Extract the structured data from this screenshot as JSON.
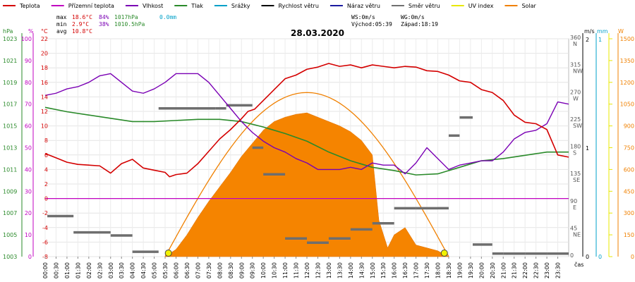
{
  "chart_data": {
    "type": "line",
    "title": "28.03.2020",
    "legend": [
      {
        "label": "Teplota",
        "color": "#d40000"
      },
      {
        "label": "Přízemní teplota",
        "color": "#c000c0"
      },
      {
        "label": "Vlhkost",
        "color": "#7a00b4"
      },
      {
        "label": "Tlak",
        "color": "#2a8a2a"
      },
      {
        "label": "Srážky",
        "color": "#00a0c8"
      },
      {
        "label": "Rychlost větru",
        "color": "#000000"
      },
      {
        "label": "Náraz větru",
        "color": "#1a1aa0"
      },
      {
        "label": "Směr větru",
        "color": "#707070"
      },
      {
        "label": "UV index",
        "color": "#e8e800"
      },
      {
        "label": "Solar",
        "color": "#f08000"
      }
    ],
    "stats": {
      "max_label": "max",
      "max_temp": "18.6°C",
      "max_hum": "84%",
      "max_press": "1017hPa",
      "rain": "0.0mm",
      "min_label": "min",
      "min_temp": "2.9°C",
      "min_hum": "38%",
      "min_press": "1010.5hPa",
      "avg_label": "avg",
      "avg_temp": "10.8°C",
      "ws": "WS:0m/s",
      "wg": "WG:0m/s",
      "sunrise": "Východ:05:39",
      "sunset": "Západ:18:19"
    },
    "axes": {
      "hpa_title": "hPa",
      "pct_title": "%",
      "c_title": "°C",
      "ms_title": "m/s",
      "mm_title": "mm",
      "w_title": "W",
      "x_title": "čas",
      "hpa_ticks": [
        "1003",
        "1005",
        "1007",
        "1009",
        "1011",
        "1013",
        "1015",
        "1017",
        "1019",
        "1021",
        "1023"
      ],
      "pct_ticks": [
        "0",
        "10",
        "20",
        "30",
        "40",
        "50",
        "60",
        "70",
        "80",
        "90",
        "100"
      ],
      "c_ticks": [
        "-8",
        "-6",
        "-4",
        "-2",
        "0",
        "2",
        "4",
        "6",
        "8",
        "10",
        "12",
        "14",
        "16",
        "18",
        "20",
        "22"
      ],
      "dir_ticks": [
        {
          "deg": 360,
          "label": "360",
          "dir": "N"
        },
        {
          "deg": 315,
          "label": "315",
          "dir": "NW"
        },
        {
          "deg": 270,
          "label": "270",
          "dir": "W"
        },
        {
          "deg": 225,
          "label": "225",
          "dir": "SW"
        },
        {
          "deg": 180,
          "label": "180",
          "dir": "S"
        },
        {
          "deg": 135,
          "label": "135",
          "dir": "SE"
        },
        {
          "deg": 90,
          "label": "90",
          "dir": "E"
        },
        {
          "deg": 45,
          "label": "45",
          "dir": "NE"
        },
        {
          "deg": 0,
          "label": "0",
          "dir": ""
        }
      ],
      "ms_ticks": [
        {
          "v": 2,
          "label": "2"
        },
        {
          "v": 1,
          "label": "1"
        },
        {
          "v": 0,
          "label": "0"
        }
      ],
      "mm_ticks": [
        {
          "v": 1,
          "label": "1"
        },
        {
          "v": 0,
          "label": "0"
        }
      ],
      "w_ticks": [
        "0",
        "150",
        "300",
        "450",
        "600",
        "750",
        "900",
        "1050",
        "1200",
        "1350",
        "1500"
      ],
      "x_ticks": [
        "00:00",
        "00:30",
        "01:00",
        "01:30",
        "02:00",
        "02:30",
        "03:00",
        "03:30",
        "04:00",
        "04:30",
        "05:00",
        "05:30",
        "06:00",
        "06:30",
        "07:00",
        "07:30",
        "08:00",
        "08:30",
        "09:00",
        "09:30",
        "10:00",
        "10:30",
        "11:00",
        "11:30",
        "12:00",
        "12:30",
        "13:00",
        "13:30",
        "14:00",
        "14:30",
        "15:00",
        "15:30",
        "16:00",
        "16:30",
        "17:00",
        "17:30",
        "18:00",
        "18:30",
        "19:00",
        "19:30",
        "20:00",
        "20:30",
        "21:00",
        "21:30",
        "22:00",
        "22:30",
        "23:00",
        "23:30"
      ],
      "temp_range": [
        -8,
        22
      ],
      "hum_range": [
        0,
        100
      ],
      "press_range": [
        1003,
        1023
      ],
      "dir_range": [
        0,
        360
      ],
      "solar_range": [
        0,
        1500
      ],
      "time_range_h": [
        0,
        24
      ]
    },
    "series": {
      "temperature": [
        [
          0,
          6.2
        ],
        [
          0.5,
          5.6
        ],
        [
          1,
          5.0
        ],
        [
          1.5,
          4.7
        ],
        [
          2,
          4.6
        ],
        [
          2.5,
          4.5
        ],
        [
          3,
          3.5
        ],
        [
          3.5,
          4.8
        ],
        [
          4,
          5.4
        ],
        [
          4.5,
          4.2
        ],
        [
          5,
          3.9
        ],
        [
          5.5,
          3.6
        ],
        [
          5.7,
          3.0
        ],
        [
          6,
          3.3
        ],
        [
          6.5,
          3.5
        ],
        [
          7,
          4.8
        ],
        [
          7.5,
          6.5
        ],
        [
          8,
          8.2
        ],
        [
          8.5,
          9.5
        ],
        [
          9,
          11.0
        ],
        [
          9.3,
          12.0
        ],
        [
          9.6,
          12.3
        ],
        [
          10,
          13.5
        ],
        [
          10.5,
          15.0
        ],
        [
          11,
          16.5
        ],
        [
          11.5,
          17.0
        ],
        [
          12,
          17.8
        ],
        [
          12.5,
          18.1
        ],
        [
          13,
          18.6
        ],
        [
          13.5,
          18.2
        ],
        [
          14,
          18.4
        ],
        [
          14.5,
          18.0
        ],
        [
          15,
          18.4
        ],
        [
          15.5,
          18.2
        ],
        [
          16,
          18.0
        ],
        [
          16.5,
          18.2
        ],
        [
          17,
          18.1
        ],
        [
          17.5,
          17.6
        ],
        [
          18,
          17.5
        ],
        [
          18.5,
          17.0
        ],
        [
          19,
          16.2
        ],
        [
          19.5,
          16.0
        ],
        [
          20,
          15.0
        ],
        [
          20.5,
          14.6
        ],
        [
          21,
          13.5
        ],
        [
          21.5,
          11.5
        ],
        [
          22,
          10.5
        ],
        [
          22.5,
          10.3
        ],
        [
          23,
          9.5
        ],
        [
          23.5,
          6.0
        ],
        [
          24,
          5.7
        ]
      ],
      "ground_temperature_c": 0,
      "humidity": [
        [
          0,
          74
        ],
        [
          0.5,
          75
        ],
        [
          1,
          77
        ],
        [
          1.5,
          78
        ],
        [
          2,
          80
        ],
        [
          2.5,
          83
        ],
        [
          3,
          84
        ],
        [
          3.5,
          80
        ],
        [
          4,
          76
        ],
        [
          4.5,
          75
        ],
        [
          5,
          77
        ],
        [
          5.5,
          80
        ],
        [
          6,
          84
        ],
        [
          6.5,
          84
        ],
        [
          7,
          84
        ],
        [
          7.5,
          80
        ],
        [
          8,
          74
        ],
        [
          8.5,
          68
        ],
        [
          9,
          62
        ],
        [
          9.5,
          57
        ],
        [
          10,
          53
        ],
        [
          10.5,
          50
        ],
        [
          11,
          48
        ],
        [
          11.5,
          45
        ],
        [
          12,
          43
        ],
        [
          12.5,
          40
        ],
        [
          13,
          40
        ],
        [
          13.5,
          40
        ],
        [
          14,
          41
        ],
        [
          14.5,
          40
        ],
        [
          15,
          43
        ],
        [
          15.5,
          42
        ],
        [
          16,
          42
        ],
        [
          16.5,
          38
        ],
        [
          17,
          43
        ],
        [
          17.5,
          50
        ],
        [
          18,
          45
        ],
        [
          18.5,
          40
        ],
        [
          19,
          42
        ],
        [
          19.5,
          43
        ],
        [
          20,
          44
        ],
        [
          20.5,
          44
        ],
        [
          21,
          48
        ],
        [
          21.5,
          54
        ],
        [
          22,
          57
        ],
        [
          22.5,
          58
        ],
        [
          23,
          61
        ],
        [
          23.5,
          71
        ],
        [
          24,
          70
        ]
      ],
      "pressure": [
        [
          0,
          1016.7
        ],
        [
          1,
          1016.3
        ],
        [
          2,
          1016.0
        ],
        [
          3,
          1015.7
        ],
        [
          4,
          1015.4
        ],
        [
          5,
          1015.4
        ],
        [
          6,
          1015.5
        ],
        [
          7,
          1015.6
        ],
        [
          8,
          1015.6
        ],
        [
          9,
          1015.4
        ],
        [
          10,
          1014.9
        ],
        [
          11,
          1014.3
        ],
        [
          12,
          1013.6
        ],
        [
          13,
          1012.6
        ],
        [
          14,
          1011.8
        ],
        [
          15,
          1011.2
        ],
        [
          16,
          1010.9
        ],
        [
          17,
          1010.5
        ],
        [
          18,
          1010.6
        ],
        [
          19,
          1011.2
        ],
        [
          20,
          1011.8
        ],
        [
          21,
          1012.0
        ],
        [
          22,
          1012.3
        ],
        [
          23,
          1012.6
        ],
        [
          24,
          1012.6
        ]
      ],
      "wind_direction": [
        [
          0.1,
          67
        ],
        [
          1.3,
          40
        ],
        [
          3.0,
          35
        ],
        [
          4.0,
          8
        ],
        [
          5.2,
          245
        ],
        [
          7.8,
          245
        ],
        [
          8.3,
          250
        ],
        [
          9.5,
          180
        ],
        [
          10,
          136
        ],
        [
          11,
          30
        ],
        [
          12,
          23
        ],
        [
          13,
          30
        ],
        [
          14,
          45
        ],
        [
          15,
          55
        ],
        [
          16,
          80
        ],
        [
          17,
          80
        ],
        [
          18,
          80
        ],
        [
          18.5,
          200
        ],
        [
          19,
          230
        ],
        [
          19.6,
          20
        ],
        [
          20.5,
          5
        ],
        [
          21,
          5
        ],
        [
          22,
          5
        ],
        [
          23,
          5
        ]
      ],
      "solar": [
        [
          5.5,
          0
        ],
        [
          6,
          50
        ],
        [
          6.5,
          150
        ],
        [
          7,
          270
        ],
        [
          7.5,
          380
        ],
        [
          8,
          480
        ],
        [
          8.5,
          580
        ],
        [
          9,
          690
        ],
        [
          9.5,
          780
        ],
        [
          10,
          870
        ],
        [
          10.5,
          930
        ],
        [
          11,
          960
        ],
        [
          11.5,
          980
        ],
        [
          12,
          990
        ],
        [
          12.5,
          960
        ],
        [
          13,
          930
        ],
        [
          13.5,
          900
        ],
        [
          14,
          860
        ],
        [
          14.5,
          800
        ],
        [
          15,
          700
        ],
        [
          15.3,
          250
        ],
        [
          15.7,
          60
        ],
        [
          16,
          150
        ],
        [
          16.5,
          200
        ],
        [
          17,
          80
        ],
        [
          17.5,
          60
        ],
        [
          18,
          40
        ],
        [
          18.3,
          15
        ],
        [
          18.5,
          0
        ]
      ],
      "solar_clear_sky_peak_w": 1130,
      "uv_index_markers_h": [
        5.65,
        18.3
      ]
    }
  }
}
